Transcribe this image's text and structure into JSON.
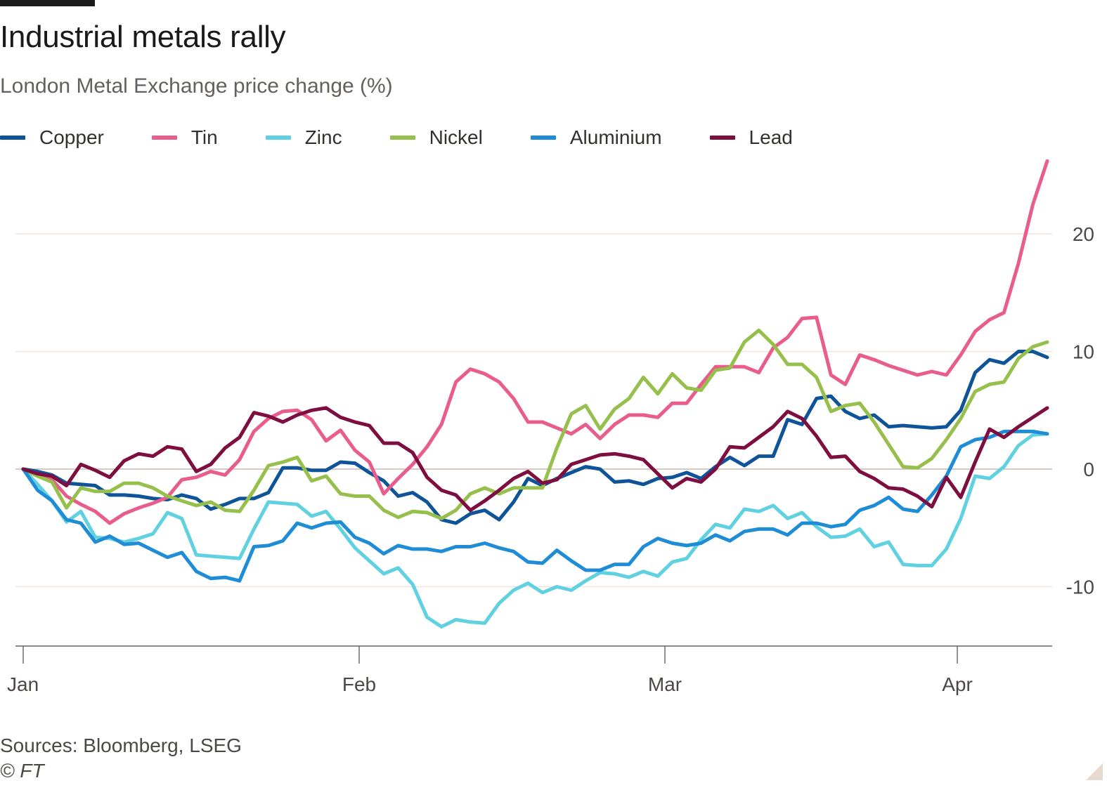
{
  "chart_data": {
    "type": "line",
    "title": "Industrial metals rally",
    "subtitle": "London Metal Exchange price change (%)",
    "xlabel": "",
    "ylabel": "",
    "x_ticks": [
      "Jan",
      "Feb",
      "Mar",
      "Apr"
    ],
    "y_ticks": [
      "20",
      "10",
      "0",
      "-10"
    ],
    "ylim": [
      -15,
      27
    ],
    "grid": true,
    "legend_position": "top",
    "source": "Sources: Bloomberg, LSEG",
    "copyright": "© FT",
    "series": [
      {
        "name": "Copper",
        "color": "#0f5499",
        "values": [
          0,
          -0.2,
          -0.5,
          -1.2,
          -1.3,
          -1.4,
          -2.2,
          -2.2,
          -2.3,
          -2.5,
          -2.6,
          -2.2,
          -2.5,
          -3.4,
          -3.0,
          -2.5,
          -2.5,
          -2.0,
          0.1,
          0.1,
          -0.1,
          -0.1,
          0.6,
          0.5,
          -0.3,
          -1.0,
          -2.3,
          -2.0,
          -2.8,
          -4.3,
          -4.6,
          -3.8,
          -3.5,
          -4.3,
          -2.8,
          -0.8,
          -1.4,
          -0.8,
          -0.3,
          0.2,
          0,
          -1.1,
          -1.0,
          -1.3,
          -0.8,
          -0.7,
          -0.3,
          -0.8,
          0.2,
          1.0,
          0.3,
          1.1,
          1.1,
          4.2,
          3.8,
          6.0,
          6.2,
          4.9,
          4.3,
          4.6,
          3.6,
          3.7,
          3.6,
          3.5,
          3.6,
          5.0,
          8.2,
          9.3,
          9.0,
          10.0,
          10.0,
          9.5
        ]
      },
      {
        "name": "Tin",
        "color": "#e95d8c",
        "values": [
          0,
          -0.6,
          -0.9,
          -2.3,
          -3.0,
          -3.6,
          -4.6,
          -3.8,
          -3.3,
          -2.9,
          -2.4,
          -0.9,
          -0.7,
          -0.2,
          -0.5,
          0.8,
          3.2,
          4.3,
          4.9,
          5.0,
          4.2,
          2.4,
          3.3,
          1.6,
          0.6,
          -2.1,
          -0.8,
          0.4,
          1.9,
          3.8,
          7.4,
          8.5,
          8.1,
          7.4,
          6.0,
          4.0,
          4.0,
          3.5,
          3.0,
          3.8,
          2.6,
          3.8,
          4.6,
          4.6,
          4.4,
          5.6,
          5.6,
          7.2,
          8.7,
          8.7,
          8.7,
          8.2,
          10.3,
          11.2,
          12.8,
          12.9,
          8.0,
          7.2,
          9.7,
          9.3,
          8.8,
          8.4,
          8.0,
          8.3,
          8.0,
          9.7,
          11.7,
          12.7,
          13.3,
          17.5,
          22.5,
          26.2
        ]
      },
      {
        "name": "Zinc",
        "color": "#60d1e1",
        "values": [
          0,
          -1.3,
          -2.7,
          -4.5,
          -3.6,
          -5.8,
          -5.9,
          -6.2,
          -5.9,
          -5.5,
          -3.7,
          -4.2,
          -7.3,
          -7.4,
          -7.5,
          -7.6,
          -5.1,
          -2.8,
          -2.9,
          -3.0,
          -4.0,
          -3.6,
          -5.1,
          -6.7,
          -7.8,
          -8.9,
          -8.4,
          -9.8,
          -12.6,
          -13.4,
          -12.8,
          -13.0,
          -13.1,
          -11.4,
          -10.3,
          -9.7,
          -10.5,
          -10.0,
          -10.3,
          -9.5,
          -8.8,
          -8.9,
          -9.2,
          -8.7,
          -9.1,
          -7.9,
          -7.6,
          -6.0,
          -4.7,
          -5.0,
          -3.4,
          -3.6,
          -3.1,
          -4.2,
          -3.7,
          -4.9,
          -5.8,
          -5.7,
          -5.1,
          -6.6,
          -6.2,
          -8.1,
          -8.2,
          -8.2,
          -6.8,
          -4.2,
          -0.6,
          -0.8,
          0.2,
          2.0,
          2.9,
          3.0
        ]
      },
      {
        "name": "Nickel",
        "color": "#96bf4b",
        "values": [
          0,
          -0.6,
          -1.1,
          -3.3,
          -1.6,
          -1.9,
          -1.9,
          -1.2,
          -1.2,
          -1.6,
          -2.3,
          -2.7,
          -3.1,
          -2.8,
          -3.5,
          -3.6,
          -1.8,
          0.3,
          0.6,
          1.0,
          -1.0,
          -0.6,
          -2.1,
          -2.3,
          -2.3,
          -3.5,
          -4.1,
          -3.6,
          -3.7,
          -4.2,
          -3.5,
          -2.1,
          -1.6,
          -2.1,
          -1.6,
          -1.6,
          -1.6,
          1.8,
          4.7,
          5.4,
          3.4,
          5.1,
          6.0,
          7.8,
          6.4,
          8.1,
          6.9,
          6.7,
          8.4,
          8.6,
          10.8,
          11.8,
          10.6,
          8.9,
          8.9,
          7.8,
          4.9,
          5.4,
          5.6,
          4.0,
          2.1,
          0.2,
          0.1,
          0.9,
          2.5,
          4.3,
          6.6,
          7.2,
          7.4,
          9.4,
          10.4,
          10.8
        ]
      },
      {
        "name": "Aluminium",
        "color": "#1f8dd6",
        "values": [
          0,
          -1.8,
          -2.7,
          -4.3,
          -4.6,
          -6.2,
          -5.7,
          -6.4,
          -6.3,
          -6.9,
          -7.5,
          -7.1,
          -8.7,
          -9.3,
          -9.2,
          -9.5,
          -6.6,
          -6.5,
          -6.1,
          -4.6,
          -5.0,
          -4.6,
          -4.5,
          -5.8,
          -6.3,
          -7.2,
          -6.5,
          -6.8,
          -6.8,
          -7.0,
          -6.6,
          -6.6,
          -6.3,
          -6.7,
          -7.0,
          -7.9,
          -8.0,
          -6.9,
          -7.8,
          -8.6,
          -8.6,
          -8.1,
          -8.1,
          -6.6,
          -5.9,
          -6.3,
          -6.5,
          -6.3,
          -5.6,
          -6.1,
          -5.3,
          -5.1,
          -5.1,
          -5.6,
          -4.6,
          -4.6,
          -4.9,
          -4.7,
          -3.5,
          -3.1,
          -2.4,
          -3.4,
          -3.6,
          -2.2,
          -0.6,
          1.9,
          2.5,
          2.7,
          3.2,
          3.2,
          3.2,
          3.0
        ]
      },
      {
        "name": "Lead",
        "color": "#7d0e3f",
        "values": [
          0,
          -0.4,
          -0.6,
          -1.4,
          0.4,
          -0.1,
          -0.7,
          0.7,
          1.3,
          1.1,
          1.9,
          1.7,
          -0.2,
          0.4,
          1.8,
          2.7,
          4.8,
          4.5,
          4.0,
          4.6,
          5.0,
          5.2,
          4.4,
          4.0,
          3.7,
          2.2,
          2.2,
          1.4,
          -0.7,
          -1.8,
          -2.2,
          -3.5,
          -2.7,
          -1.8,
          -0.8,
          -0.2,
          -1.2,
          -0.9,
          0.4,
          0.8,
          1.2,
          1.3,
          1.1,
          0.8,
          -0.4,
          -1.6,
          -0.8,
          -1.1,
          0.0,
          1.9,
          1.8,
          2.7,
          3.6,
          4.9,
          4.3,
          2.8,
          1.0,
          1.1,
          -0.2,
          -0.8,
          -1.6,
          -1.7,
          -2.3,
          -3.2,
          -0.7,
          -2.4,
          0.6,
          3.4,
          2.7,
          3.6,
          4.4,
          5.2
        ]
      }
    ]
  }
}
